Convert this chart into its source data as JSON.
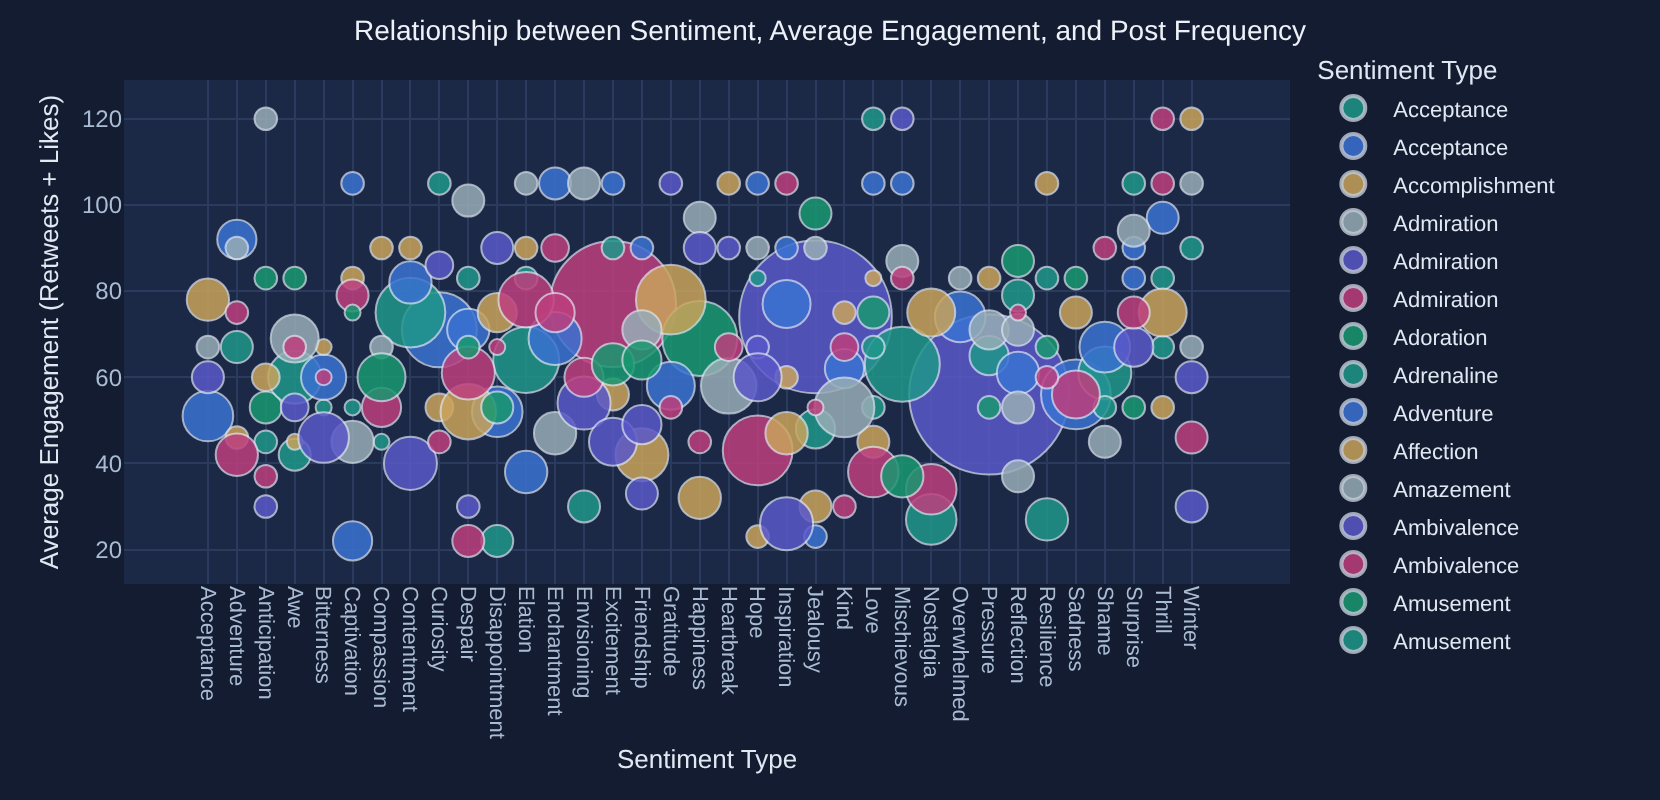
{
  "chart_data": {
    "type": "bubble",
    "title": "Relationship between Sentiment, Average Engagement, and Post Frequency",
    "xlabel": "Sentiment Type",
    "ylabel": "Average Engagement (Retweets + Likes)",
    "legend_title": "Sentiment Type",
    "legend": "right",
    "grid": true,
    "ylim": [
      12,
      129
    ],
    "yticks": [
      20,
      40,
      60,
      80,
      100,
      120
    ],
    "categories": [
      "Acceptance",
      "Adventure",
      "Anticipation",
      "Awe",
      "Bitterness",
      "Captivation",
      "Compassion",
      "Contentment",
      "Curiosity",
      "Despair",
      "Disappointment",
      "Elation",
      "Enchantment",
      "Envisioning",
      "Excitement",
      "Friendship",
      "Gratitude",
      "Happiness",
      "Heartbreak",
      "Hope",
      "Inspiration",
      "Jealousy",
      "Kind",
      "Love",
      "Mischievous",
      "Nostalgia",
      "Overwhelmed",
      "Pressure",
      "Reflection",
      "Resilience",
      "Sadness",
      "Shame",
      "Surprise",
      "Thrill",
      "Winter"
    ],
    "series": [
      {
        "colors": [
          "#5a58c9",
          "#5a58c9",
          "#be3f7e",
          "#3a72d2",
          "#199870",
          "#1f978a",
          "#1f978a",
          "#c9a45c",
          "#be3f7e",
          "#3a72d2",
          "#1f978a"
        ],
        "x": [
          "Pressure",
          "Jealousy",
          "Excitement",
          "Curiosity",
          "Happiness",
          "Mischievous",
          "Contentment",
          "Gratitude",
          "Hope",
          "Sadness",
          "Elation"
        ],
        "values": [
          56,
          74,
          77,
          71,
          69,
          63,
          75,
          78,
          43,
          56,
          64
        ],
        "sizes": [
          1,
          0.91,
          0.62,
          0.22,
          0.22,
          0.22,
          0.19,
          0.19,
          0.19,
          0.19,
          0.17
        ]
      },
      {
        "name": "Acceptance",
        "color": "#1f978a",
        "x": [
          "Adventure"
        ],
        "values": [
          67
        ],
        "sizes": [
          0.04
        ]
      },
      {
        "name": "Acceptance",
        "color": "#3a72d2",
        "x": [
          "Acceptance"
        ],
        "values": [
          51
        ],
        "sizes": [
          0.1
        ]
      },
      {
        "name": "Accomplishment",
        "color": "#c9a45c",
        "x": [
          "Acceptance"
        ],
        "values": [
          78
        ],
        "sizes": [
          0.07
        ]
      },
      {
        "name": "Admiration",
        "color": "#97adb6",
        "x": [
          "Acceptance"
        ],
        "values": [
          67
        ],
        "sizes": [
          0.02
        ]
      },
      {
        "name": "Admiration",
        "color": "#5a58c9",
        "x": [
          "Acceptance"
        ],
        "values": [
          60
        ],
        "sizes": [
          0.04
        ]
      },
      {
        "name": "Admiration",
        "color": "#be3f7e",
        "x": [
          "Adventure"
        ],
        "values": [
          75
        ],
        "sizes": [
          0.02
        ]
      },
      {
        "name": "Adoration",
        "color": "#199870",
        "x": [
          "Anticipation"
        ],
        "values": [
          53
        ],
        "sizes": [
          0.04
        ]
      },
      {
        "name": "Adrenaline",
        "color": "#1f978a",
        "x": [
          "Anticipation"
        ],
        "values": [
          45
        ],
        "sizes": [
          0.02
        ]
      },
      {
        "name": "Adventure",
        "color": "#3a72d2",
        "x": [
          "Adventure"
        ],
        "values": [
          92
        ],
        "sizes": [
          0.06
        ]
      },
      {
        "name": "Affection",
        "color": "#c9a45c",
        "x": [
          "Adventure"
        ],
        "values": [
          46
        ],
        "sizes": [
          0.02
        ]
      },
      {
        "name": "Amazement",
        "color": "#97adb6",
        "x": [
          "Adventure"
        ],
        "values": [
          90
        ],
        "sizes": [
          0.02
        ]
      },
      {
        "name": "Ambivalence",
        "color": "#5a58c9",
        "x": [
          "Anticipation"
        ],
        "values": [
          30
        ],
        "sizes": [
          0.02
        ]
      },
      {
        "name": "Ambivalence",
        "color": "#be3f7e",
        "x": [
          "Adventure"
        ],
        "values": [
          42
        ],
        "sizes": [
          0.07
        ]
      },
      {
        "name": "Amusement",
        "color": "#199870",
        "x": [
          "Anticipation"
        ],
        "values": [
          83
        ],
        "sizes": [
          0.02
        ]
      },
      {
        "name": "Amusement",
        "color": "#1f978a",
        "x": [
          "Awe"
        ],
        "values": [
          42
        ],
        "sizes": [
          0.04
        ]
      },
      {
        "color": "#1f978a",
        "x": [
          "Curiosity",
          "Awe",
          "Bitterness",
          "Captivation",
          "Compassion",
          "Despair",
          "Elation",
          "Excitement",
          "Disappointment",
          "Envisioning",
          "Love",
          "Love",
          "Jealousy",
          "Nostalgia",
          "Pressure",
          "Reflection",
          "Resilience",
          "Surprise",
          "Thrill",
          "Thrill",
          "Winter",
          "Shame",
          "Shame",
          "Resilience",
          "Love",
          "Hope"
        ],
        "values": [
          105,
          60,
          53,
          53,
          45,
          83,
          83,
          90,
          22,
          30,
          67,
          53,
          48,
          27,
          65,
          79,
          83,
          105,
          83,
          67,
          90,
          61,
          53,
          27,
          120,
          83
        ],
        "sizes": [
          0.02,
          0.11,
          0.01,
          0.01,
          0.01,
          0.02,
          0.02,
          0.02,
          0.04,
          0.04,
          0.02,
          0.02,
          0.06,
          0.1,
          0.06,
          0.04,
          0.02,
          0.02,
          0.02,
          0.02,
          0.02,
          0.11,
          0.02,
          0.07,
          0.02,
          0.01
        ]
      },
      {
        "color": "#3a72d2",
        "x": [
          "Captivation",
          "Contentment",
          "Bitterness",
          "Captivation",
          "Enchantment",
          "Excitement",
          "Friendship",
          "Despair",
          "Enchantment",
          "Disappointment",
          "Gratitude",
          "Elation",
          "Hope",
          "Love",
          "Mischievous",
          "Inspiration",
          "Inspiration",
          "Kind",
          "Jealousy",
          "Overwhelmed",
          "Thrill",
          "Surprise",
          "Surprise",
          "Shame",
          "Reflection"
        ],
        "values": [
          105,
          82,
          60,
          22,
          105,
          105,
          90,
          71,
          69,
          52,
          58,
          38,
          105,
          105,
          105,
          90,
          77,
          62,
          23,
          74,
          97,
          90,
          83,
          67,
          61
        ],
        "sizes": [
          0.02,
          0.07,
          0.08,
          0.06,
          0.04,
          0.02,
          0.02,
          0.07,
          0.11,
          0.1,
          0.09,
          0.07,
          0.02,
          0.02,
          0.02,
          0.02,
          0.09,
          0.06,
          0.02,
          0.1,
          0.04,
          0.02,
          0.02,
          0.1,
          0.07
        ]
      },
      {
        "color": "#c9a45c",
        "x": [
          "Captivation",
          "Compassion",
          "Contentment",
          "Bitterness",
          "Anticipation",
          "Awe",
          "Elation",
          "Disappointment",
          "Curiosity",
          "Despair",
          "Excitement",
          "Friendship",
          "Happiness",
          "Heartbreak",
          "Love",
          "Nostalgia",
          "Kind",
          "Inspiration",
          "Inspiration",
          "Love",
          "Jealousy",
          "Hope",
          "Pressure",
          "Resilience",
          "Winter",
          "Sadness",
          "Thrill",
          "Thrill"
        ],
        "values": [
          83,
          90,
          90,
          67,
          60,
          45,
          90,
          75,
          53,
          52,
          56,
          42,
          32,
          105,
          83,
          75,
          75,
          60,
          47,
          45,
          30,
          23,
          83,
          105,
          120,
          75,
          75,
          53
        ],
        "sizes": [
          0.02,
          0.02,
          0.02,
          0.01,
          0.03,
          0.01,
          0.02,
          0.06,
          0.03,
          0.12,
          0.04,
          0.11,
          0.07,
          0.02,
          0.01,
          0.09,
          0.02,
          0.02,
          0.07,
          0.04,
          0.04,
          0.02,
          0.02,
          0.02,
          0.02,
          0.04,
          0.09,
          0.02
        ]
      },
      {
        "color": "#97adb6",
        "x": [
          "Anticipation",
          "Compassion",
          "Captivation",
          "Despair",
          "Elation",
          "Envisioning",
          "Happiness",
          "Friendship",
          "Enchantment",
          "Heartbreak",
          "Hope",
          "Jealousy",
          "Mischievous",
          "Kind",
          "Overwhelmed",
          "Pressure",
          "Reflection",
          "Surprise",
          "Winter",
          "Winter",
          "Shame",
          "Reflection",
          "Reflection",
          "Awe"
        ],
        "values": [
          120,
          67,
          45,
          101,
          105,
          105,
          97,
          71,
          47,
          58,
          90,
          90,
          87,
          53,
          83,
          71,
          71,
          94,
          105,
          67,
          45,
          37,
          53,
          69
        ],
        "sizes": [
          0.02,
          0.02,
          0.07,
          0.04,
          0.02,
          0.04,
          0.04,
          0.06,
          0.07,
          0.12,
          0.02,
          0.02,
          0.04,
          0.14,
          0.02,
          0.06,
          0.04,
          0.04,
          0.02,
          0.02,
          0.04,
          0.04,
          0.04,
          0.09
        ]
      },
      {
        "color": "#5a58c9",
        "x": [
          "Awe",
          "Bitterness",
          "Contentment",
          "Curiosity",
          "Disappointment",
          "Gratitude",
          "Happiness",
          "Envisioning",
          "Excitement",
          "Friendship",
          "Despair",
          "Friendship",
          "Mischievous",
          "Heartbreak",
          "Hope",
          "Hope",
          "Inspiration",
          "Surprise",
          "Winter",
          "Winter"
        ],
        "values": [
          53,
          46,
          40,
          86,
          90,
          105,
          90,
          54,
          45,
          49,
          30,
          33,
          120,
          90,
          67,
          60,
          26,
          67,
          60,
          30
        ],
        "sizes": [
          0.03,
          0.1,
          0.11,
          0.03,
          0.04,
          0.02,
          0.04,
          0.11,
          0.09,
          0.06,
          0.02,
          0.04,
          0.02,
          0.02,
          0.02,
          0.09,
          0.11,
          0.06,
          0.04,
          0.04
        ]
      },
      {
        "color": "#be3f7e",
        "x": [
          "Captivation",
          "Bitterness",
          "Awe",
          "Anticipation",
          "Compassion",
          "Enchantment",
          "Elation",
          "Enchantment",
          "Disappointment",
          "Despair",
          "Envisioning",
          "Gratitude",
          "Happiness",
          "Curiosity",
          "Despair",
          "Inspiration",
          "Mischievous",
          "Heartbreak",
          "Kind",
          "Jealousy",
          "Kind",
          "Love",
          "Nostalgia",
          "Thrill",
          "Thrill",
          "Shame",
          "Surprise",
          "Sadness",
          "Reflection",
          "Resilience",
          "Winter"
        ],
        "values": [
          79,
          60,
          67,
          37,
          53,
          90,
          78,
          75,
          67,
          61,
          60,
          53,
          45,
          45,
          22,
          105,
          83,
          67,
          67,
          53,
          30,
          38,
          34,
          120,
          105,
          90,
          75,
          56,
          75,
          60,
          46
        ],
        "sizes": [
          0.04,
          0.01,
          0.02,
          0.02,
          0.06,
          0.03,
          0.12,
          0.06,
          0.01,
          0.11,
          0.06,
          0.02,
          0.02,
          0.02,
          0.04,
          0.02,
          0.02,
          0.03,
          0.03,
          0.01,
          0.02,
          0.1,
          0.1,
          0.02,
          0.02,
          0.02,
          0.04,
          0.09,
          0.01,
          0.02,
          0.04
        ]
      },
      {
        "color": "#199870",
        "x": [
          "Awe",
          "Captivation",
          "Compassion",
          "Despair",
          "Disappointment",
          "Excitement",
          "Friendship",
          "Jealousy",
          "Love",
          "Mischievous",
          "Pressure",
          "Reflection",
          "Resilience",
          "Sadness",
          "Surprise"
        ],
        "values": [
          83,
          75,
          60,
          67,
          53,
          63,
          64,
          98,
          75,
          37,
          53,
          87,
          67,
          83,
          53
        ],
        "sizes": [
          0.02,
          0.01,
          0.09,
          0.02,
          0.04,
          0.07,
          0.06,
          0.04,
          0.04,
          0.07,
          0.02,
          0.04,
          0.02,
          0.02,
          0.02
        ]
      }
    ]
  }
}
